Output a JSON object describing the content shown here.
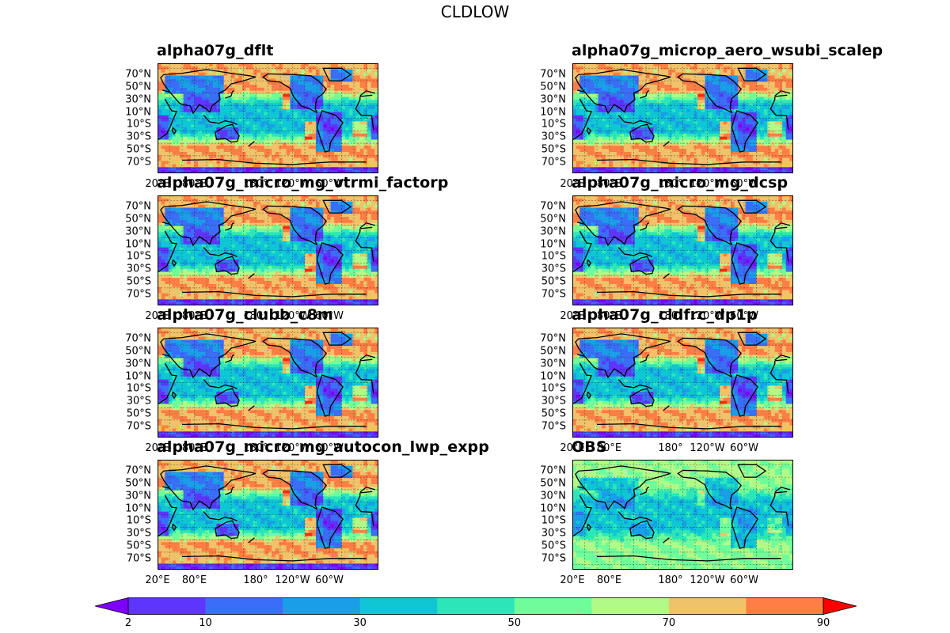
{
  "figure_title": "CLDLOW",
  "lat_labels": [
    "70°N",
    "50°N",
    "30°N",
    "10°N",
    "10°S",
    "30°S",
    "50°S",
    "70°S"
  ],
  "lon_labels": [
    "20°E",
    "80°E",
    "180°",
    "120°W",
    "60°W"
  ],
  "panels": [
    {
      "title": "alpha07g_dflt",
      "variant": "model"
    },
    {
      "title": "alpha07g_microp_aero_wsubi_scalep",
      "variant": "model"
    },
    {
      "title": "alpha07g_micro_mg_vtrmi_factorp",
      "variant": "model"
    },
    {
      "title": "alpha07g_micro_mg_dcsp",
      "variant": "model"
    },
    {
      "title": "alpha07g_clubb_c8m",
      "variant": "model"
    },
    {
      "title": "alpha07g_cldfrc_dp1p",
      "variant": "model"
    },
    {
      "title": "alpha07g_micro_mg_autocon_lwp_expp",
      "variant": "model"
    },
    {
      "title": "OBS",
      "variant": "obs"
    }
  ],
  "chart_data": {
    "type": "heatmap",
    "title": "CLDLOW",
    "colormap": "rainbow",
    "levels": [
      2,
      10,
      20,
      30,
      40,
      50,
      60,
      70,
      80,
      90
    ],
    "colorbar_ticks": [
      2,
      10,
      30,
      50,
      70,
      90
    ],
    "colorbar_extend": "both",
    "colors": [
      "#7f00ff",
      "#5e35fc",
      "#3a6ef6",
      "#1a9ee8",
      "#0fc7d4",
      "#2ce6b9",
      "#6ffd9c",
      "#b1fa88",
      "#f0c26a",
      "#ff7e45",
      "#ff2a14"
    ],
    "under_color": "#7f00ff",
    "over_color": "#ff0000"
  }
}
